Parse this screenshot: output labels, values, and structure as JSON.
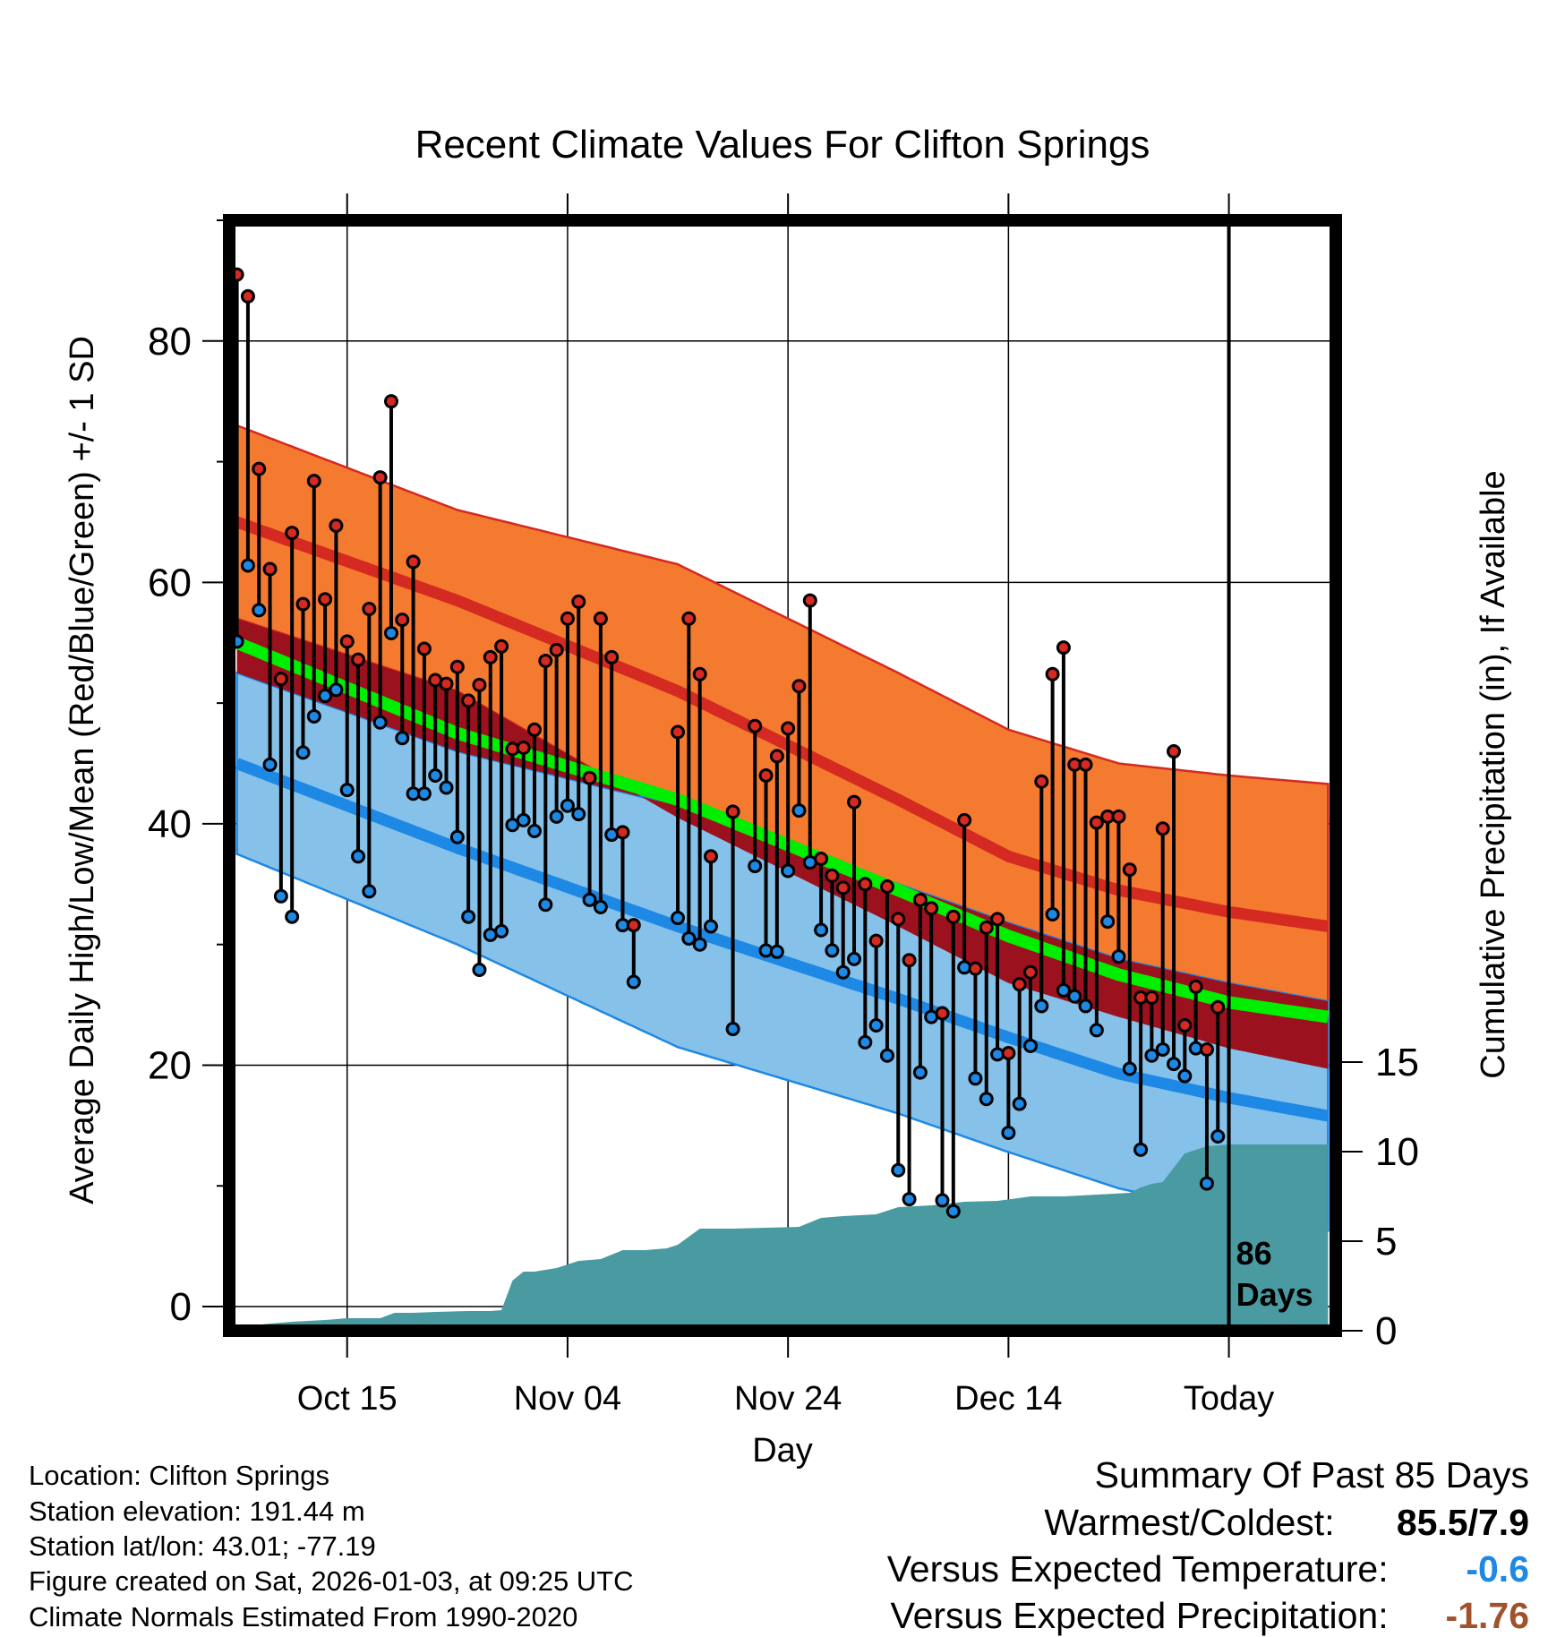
{
  "chart_data": {
    "type": "line",
    "title": "Recent Climate Values For Clifton Springs",
    "xlabel": "Day",
    "ylabel_left": "Average Daily High/Low/Mean (Red/Blue/Green) +/- 1 SD",
    "ylabel_right": "Cumulative Precipitation (in), If Available",
    "ylim": [
      -2,
      90
    ],
    "y2lim": [
      0,
      62
    ],
    "xlim": [
      -0.7,
      99.7
    ],
    "grid": true,
    "x_ticks": [
      {
        "label": "Oct 15",
        "day": 10
      },
      {
        "label": "Nov 04",
        "day": 30
      },
      {
        "label": "Nov 24",
        "day": 50
      },
      {
        "label": "Dec 14",
        "day": 70
      },
      {
        "label": "Today",
        "day": 90
      }
    ],
    "y_ticks": [
      0,
      20,
      40,
      60,
      80
    ],
    "y2_ticks": [
      0,
      5,
      10,
      15
    ],
    "today_day": 90,
    "today_label": [
      "86",
      "Days"
    ],
    "normals": {
      "days": [
        0,
        20,
        40,
        60,
        70,
        80,
        90,
        99
      ],
      "high_mean": [
        65.0,
        58.5,
        51.0,
        42.0,
        37.3,
        34.5,
        32.7,
        31.5
      ],
      "high_sd": [
        8.0,
        7.5,
        10.5,
        10.5,
        10.5,
        10.5,
        11.3,
        11.8
      ],
      "mean": [
        55.0,
        47.5,
        42.0,
        34.5,
        30.7,
        27.5,
        25.2,
        24.0
      ],
      "low_mean": [
        45.0,
        38.0,
        31.5,
        25.5,
        22.3,
        19.3,
        17.3,
        15.8
      ],
      "low_sd": [
        7.5,
        8.0,
        10.0,
        9.5,
        9.5,
        9.5,
        9.5,
        9.5
      ]
    },
    "series": [
      {
        "name": "Daily High",
        "color": "#d42a22",
        "values": [
          85.5,
          83.7,
          69.4,
          61.1,
          52.0,
          64.1,
          58.2,
          68.4,
          58.6,
          64.7,
          55.1,
          53.6,
          57.8,
          68.7,
          75.0,
          56.9,
          61.7,
          54.5,
          51.9,
          51.6,
          53.0,
          50.2,
          51.5,
          53.8,
          54.7,
          46.2,
          46.3,
          47.8,
          53.5,
          54.4,
          57.0,
          58.4,
          43.8,
          57.0,
          53.8,
          39.3,
          31.6,
          null,
          null,
          null,
          47.6,
          57.0,
          52.4,
          37.3,
          null,
          41.0,
          null,
          48.1,
          44.0,
          45.6,
          47.9,
          51.4,
          58.5,
          37.1,
          35.7,
          34.7,
          41.8,
          35.0,
          30.3,
          34.8,
          32.1,
          28.7,
          33.7,
          33.0,
          24.3,
          32.3,
          40.3,
          28.0,
          31.4,
          32.1,
          21.0,
          26.7,
          27.7,
          43.5,
          52.4,
          54.6,
          44.9,
          44.9,
          40.1,
          40.6,
          40.6,
          36.2,
          25.6,
          25.6,
          39.6,
          46.0,
          23.3,
          26.5,
          21.3,
          24.8
        ]
      },
      {
        "name": "Daily Low",
        "color": "#1e88e5",
        "values": [
          55.1,
          61.4,
          57.7,
          44.9,
          34.0,
          32.3,
          45.9,
          48.9,
          50.6,
          51.1,
          42.8,
          37.3,
          34.4,
          48.4,
          55.8,
          47.1,
          42.5,
          42.5,
          44.0,
          43.0,
          38.9,
          32.3,
          27.9,
          30.8,
          31.1,
          39.9,
          40.3,
          39.4,
          33.3,
          40.6,
          41.5,
          40.8,
          33.7,
          33.1,
          39.1,
          31.6,
          26.9,
          null,
          null,
          null,
          32.2,
          30.5,
          30.0,
          31.5,
          null,
          23.0,
          null,
          36.5,
          29.5,
          29.4,
          36.1,
          41.1,
          36.8,
          31.2,
          29.5,
          27.7,
          28.8,
          21.9,
          23.3,
          20.8,
          11.3,
          8.9,
          19.4,
          24.0,
          8.8,
          7.9,
          28.1,
          18.9,
          17.2,
          20.9,
          14.4,
          16.8,
          21.6,
          24.9,
          32.5,
          26.2,
          25.7,
          24.9,
          22.9,
          31.9,
          29.0,
          19.7,
          13.0,
          20.8,
          21.3,
          20.1,
          19.1,
          21.4,
          10.2,
          14.1
        ]
      }
    ],
    "precip_cumulative": {
      "days": [
        0,
        1,
        1.5,
        3,
        5,
        8,
        10,
        13,
        14.3,
        16,
        18,
        21,
        23,
        24,
        25,
        26,
        27,
        29,
        31,
        33,
        35,
        37,
        39,
        40,
        42,
        45,
        48,
        51,
        53,
        55,
        58,
        60,
        63,
        66,
        69,
        72,
        75,
        78,
        81,
        82,
        83,
        84,
        85,
        86,
        88,
        90,
        99
      ],
      "values": [
        0,
        0,
        0.3,
        0.4,
        0.5,
        0.6,
        0.7,
        0.7,
        1.0,
        1.0,
        1.05,
        1.1,
        1.1,
        1.15,
        2.8,
        3.3,
        3.3,
        3.5,
        3.9,
        4.0,
        4.5,
        4.5,
        4.6,
        4.8,
        5.7,
        5.7,
        5.75,
        5.8,
        6.3,
        6.4,
        6.5,
        6.9,
        7.0,
        7.2,
        7.25,
        7.5,
        7.5,
        7.6,
        7.7,
        8.0,
        8.2,
        8.3,
        9.1,
        9.9,
        10.3,
        10.4,
        10.4
      ]
    }
  },
  "footer": {
    "location": "Location: Clifton Springs",
    "elevation": "Station elevation: 191.44 m",
    "latlon": "Station lat/lon: 43.01; -77.19",
    "created": "Figure created on Sat, 2026-01-03, at 09:25 UTC",
    "normals": "Climate Normals Estimated From 1990-2020"
  },
  "summary": {
    "title": "Summary Of Past 85 Days",
    "warm_cold_label": "Warmest/Coldest:",
    "warm_cold_value": "85.5/7.9",
    "temp_label": "Versus Expected Temperature:",
    "temp_value": "-0.6",
    "temp_color": "#1e88e5",
    "precip_label": "Versus Expected Precipitation:",
    "precip_value": "-1.76",
    "precip_color": "#a0522d"
  },
  "colors": {
    "high_band": "#f47a30",
    "high_band_edge": "#d42a22",
    "high_mean_line": "#d42a22",
    "low_band": "#85c1e9",
    "low_band_edge": "#1e88e5",
    "low_mean_line": "#1e88e5",
    "overlap": "#9b111e",
    "mean_line": "#00ee00",
    "precip": "#4a9aa2",
    "high_marker": "#d42a22",
    "low_marker": "#1e88e5"
  }
}
